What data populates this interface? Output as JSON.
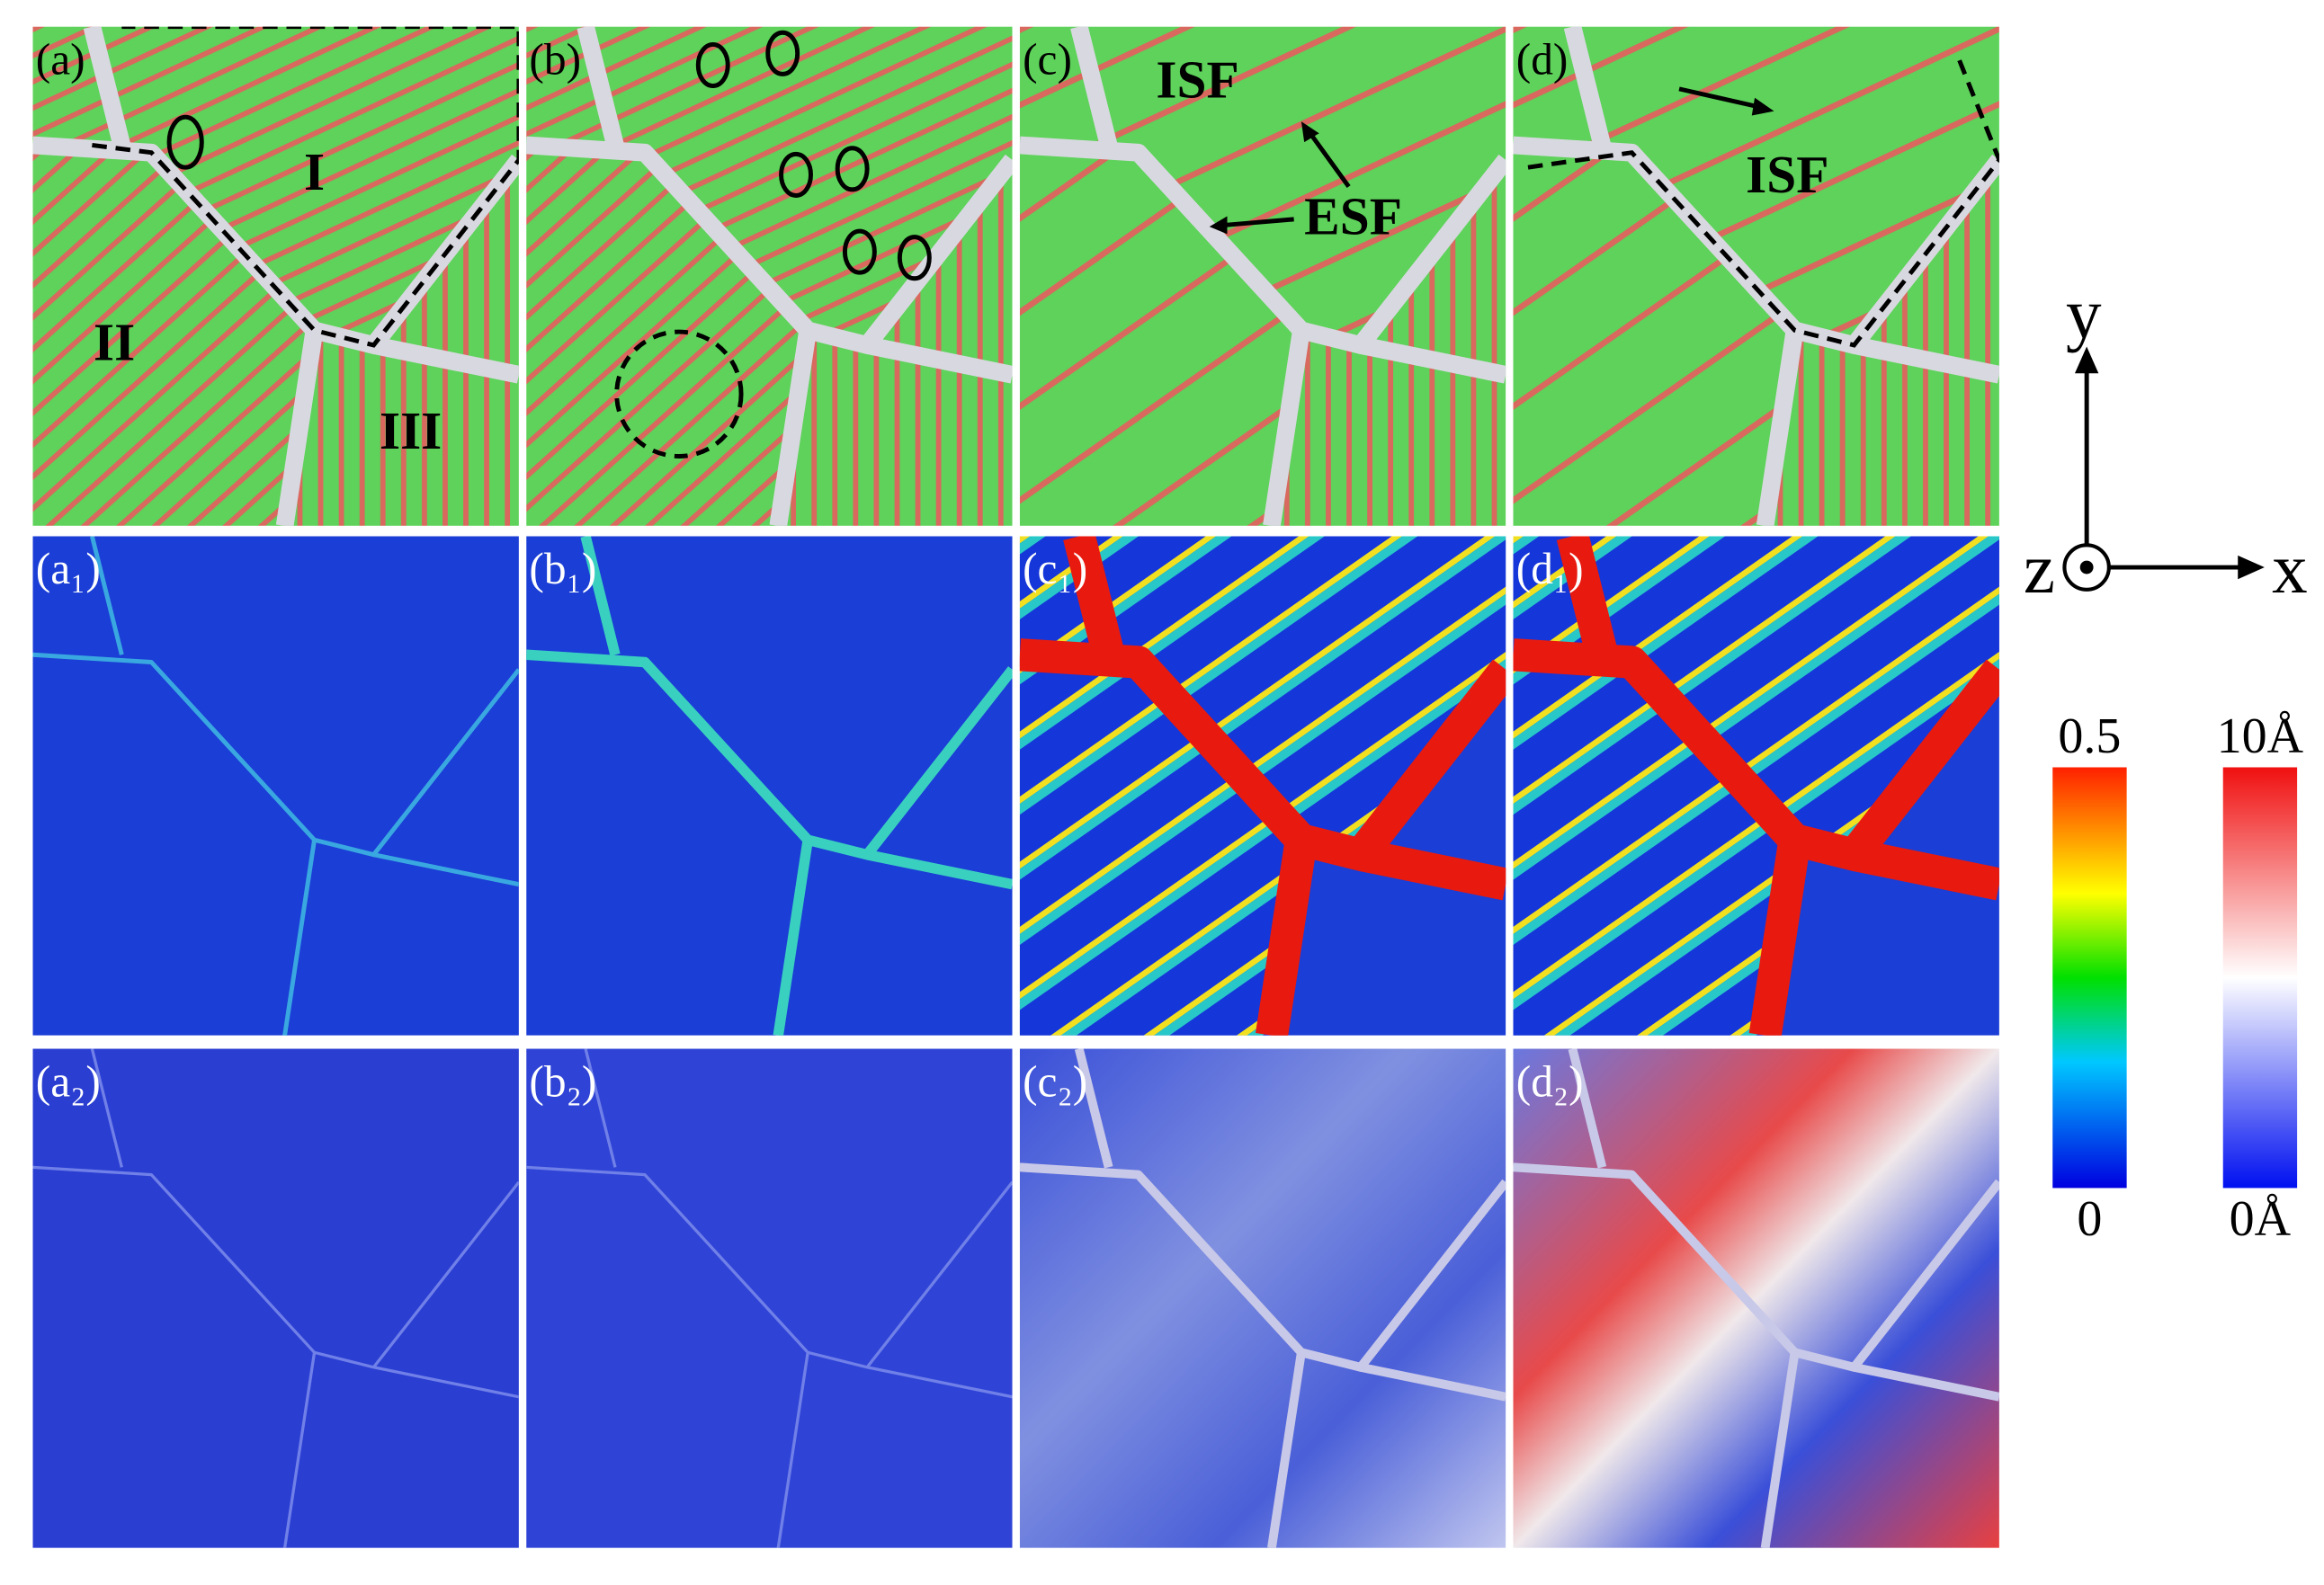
{
  "panels": [
    {
      "label": "(a)"
    },
    {
      "label": "(b)"
    },
    {
      "label": "(c)"
    },
    {
      "label": "(d)"
    },
    {
      "label": "(a₁)"
    },
    {
      "label": "(b₁)"
    },
    {
      "label": "(c₁)"
    },
    {
      "label": "(d₁)"
    },
    {
      "label": "(a₂)"
    },
    {
      "label": "(b₂)"
    },
    {
      "label": "(c₂)"
    },
    {
      "label": "(d₂)"
    }
  ],
  "annotations": {
    "grain_1": "I",
    "grain_2": "II",
    "grain_3": "III",
    "isf_c": "ISF",
    "esf_c": "ESF",
    "isf_d": "ISF"
  },
  "axes": {
    "y": "y",
    "z": "z",
    "x": "x"
  },
  "colorbars": [
    {
      "top": "0.5",
      "bottom": "0"
    },
    {
      "top": "10Å",
      "bottom": "0Å"
    }
  ]
}
